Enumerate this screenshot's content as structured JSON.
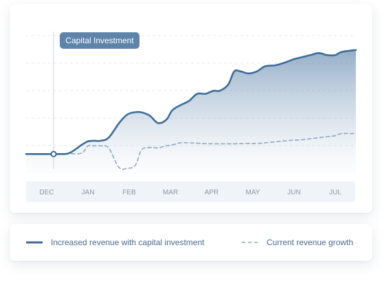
{
  "chart_data": {
    "type": "area",
    "categories": [
      "DEC",
      "JAN",
      "FEB",
      "MAR",
      "APR",
      "MAY",
      "JUN",
      "JUL"
    ],
    "x": [
      0,
      0.3,
      0.55,
      0.85,
      1,
      1.15,
      1.3,
      1.5,
      1.75,
      1.95,
      2.15,
      2.3,
      2.5,
      2.7,
      2.9,
      3.05,
      3.25,
      3.45,
      3.65,
      3.85,
      4.05,
      4.2,
      4.4,
      4.55,
      4.7,
      4.9,
      5.1,
      5.3,
      5.55,
      5.8,
      6,
      6.2,
      6.4,
      6.6,
      6.8,
      7,
      7.15,
      7.5
    ],
    "series": [
      {
        "name": "Increased revenue with capital investment",
        "style": "solid",
        "color": "#3d6b99",
        "values": [
          1.0,
          1.0,
          1.05,
          1.45,
          1.62,
          1.65,
          1.65,
          1.8,
          2.5,
          2.93,
          3.05,
          3.04,
          2.88,
          2.52,
          2.68,
          3.15,
          3.4,
          3.6,
          3.95,
          3.95,
          4.1,
          4.1,
          4.4,
          5.05,
          5.05,
          4.95,
          5.05,
          5.3,
          5.35,
          5.5,
          5.65,
          5.75,
          5.85,
          5.95,
          5.85,
          5.85,
          6.0,
          6.1
        ]
      },
      {
        "name": "Current revenue growth",
        "style": "dashed",
        "color": "#8aa8c4",
        "values": [
          1.0,
          1.0,
          1.02,
          1.05,
          1.4,
          1.4,
          1.4,
          1.3,
          0.35,
          0.3,
          0.45,
          1.2,
          1.32,
          1.3,
          1.4,
          1.45,
          1.55,
          1.55,
          1.53,
          1.51,
          1.5,
          1.5,
          1.5,
          1.5,
          1.51,
          1.52,
          1.52,
          1.55,
          1.6,
          1.65,
          1.68,
          1.7,
          1.75,
          1.8,
          1.85,
          1.9,
          2.0,
          2.0
        ]
      }
    ],
    "ylim": [
      0,
      7
    ],
    "xlabel": "",
    "ylabel": "",
    "grid": true,
    "legend_position": "bottom",
    "annotation": {
      "label": "Capital Investment",
      "x": 0.7
    }
  },
  "legend": {
    "solid_label": "Increased revenue with capital investment",
    "dashed_label": "Current revenue growth"
  },
  "colors": {
    "accent": "#3d6b99",
    "secondary": "#8aa8c4",
    "tooltip_bg": "#5e84aa",
    "axis_band": "#f0f3f7",
    "tick_text": "#8a98a6",
    "grid": "#e6eaef"
  }
}
